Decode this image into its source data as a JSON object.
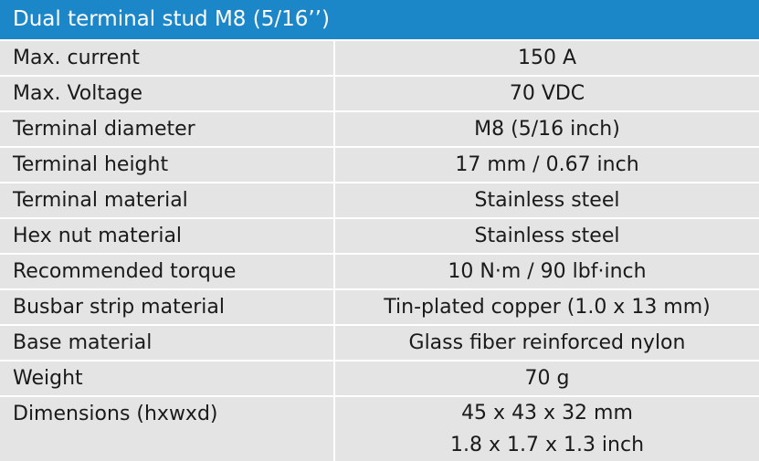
{
  "header": {
    "title": "Dual terminal stud M8 (5/16’’)"
  },
  "table": {
    "rows": [
      [
        "Max. current",
        "150 A"
      ],
      [
        "Max. Voltage",
        "70 VDC"
      ],
      [
        "Terminal diameter",
        "M8 (5/16 inch)"
      ],
      [
        "Terminal height",
        "17 mm / 0.67 inch"
      ],
      [
        "Terminal material",
        "Stainless steel"
      ],
      [
        "Hex nut material",
        "Stainless steel"
      ],
      [
        "Recommended torque",
        "10 N·m / 90 lbf·inch"
      ],
      [
        "Busbar strip material",
        "Tin-plated copper (1.0 x 13 mm)"
      ],
      [
        "Base material",
        "Glass fiber reinforced nylon"
      ],
      [
        "Weight",
        "70 g"
      ],
      [
        "Dimensions (hxwxd)",
        "45 x 43 x 32 mm",
        "1.8 x 1.7 x 1.3 inch"
      ]
    ]
  }
}
